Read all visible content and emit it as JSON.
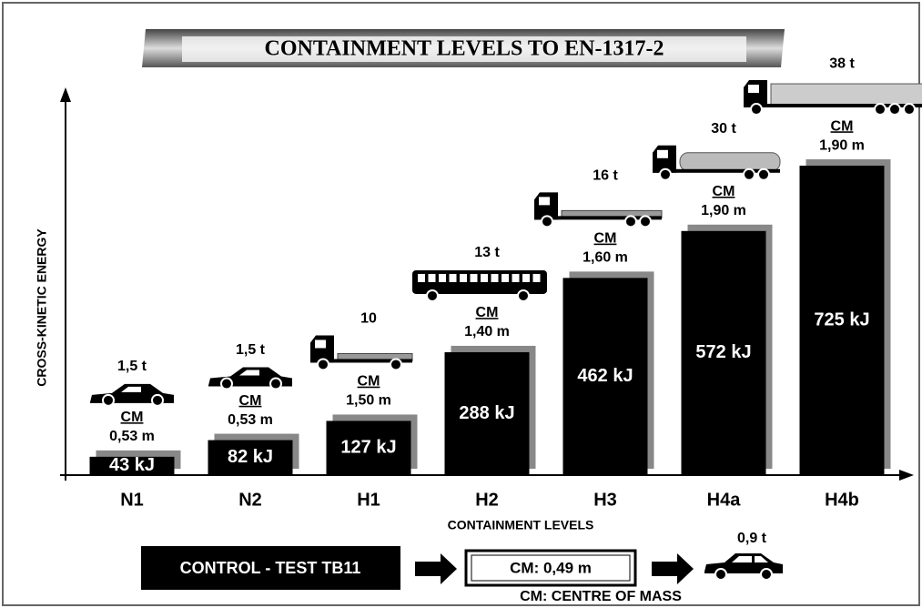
{
  "chart_data": {
    "type": "bar",
    "title": "CONTAINMENT LEVELS TO EN-1317-2",
    "y_label": "CROSS-KINETIC ENERGY",
    "x_label": "CONTAINMENT LEVELS",
    "categories": [
      "N1",
      "N2",
      "H1",
      "H2",
      "H3",
      "H4a",
      "H4b"
    ],
    "values": [
      43,
      82,
      127,
      288,
      462,
      572,
      725
    ],
    "value_labels": [
      "43 kJ",
      "82 kJ",
      "127 kJ",
      "288 kJ",
      "462 kJ",
      "572 kJ",
      "725 kJ"
    ],
    "masses": [
      "1,5 t",
      "1,5 t",
      "10",
      "13 t",
      "16 t",
      "30 t",
      "38 t"
    ],
    "cm_label": "CM",
    "cm_heights": [
      "0,53 m",
      "0,53 m",
      "1,50 m",
      "1,40 m",
      "1,60 m",
      "1,90 m",
      "1,90 m"
    ],
    "color": "#000000",
    "ylim": [
      0,
      900
    ]
  },
  "footer": {
    "control_test": "CONTROL - TEST  TB11",
    "cm": "CM: 0,49 m",
    "mass": "0,9 t",
    "note": "CM: CENTRE OF MASS"
  }
}
